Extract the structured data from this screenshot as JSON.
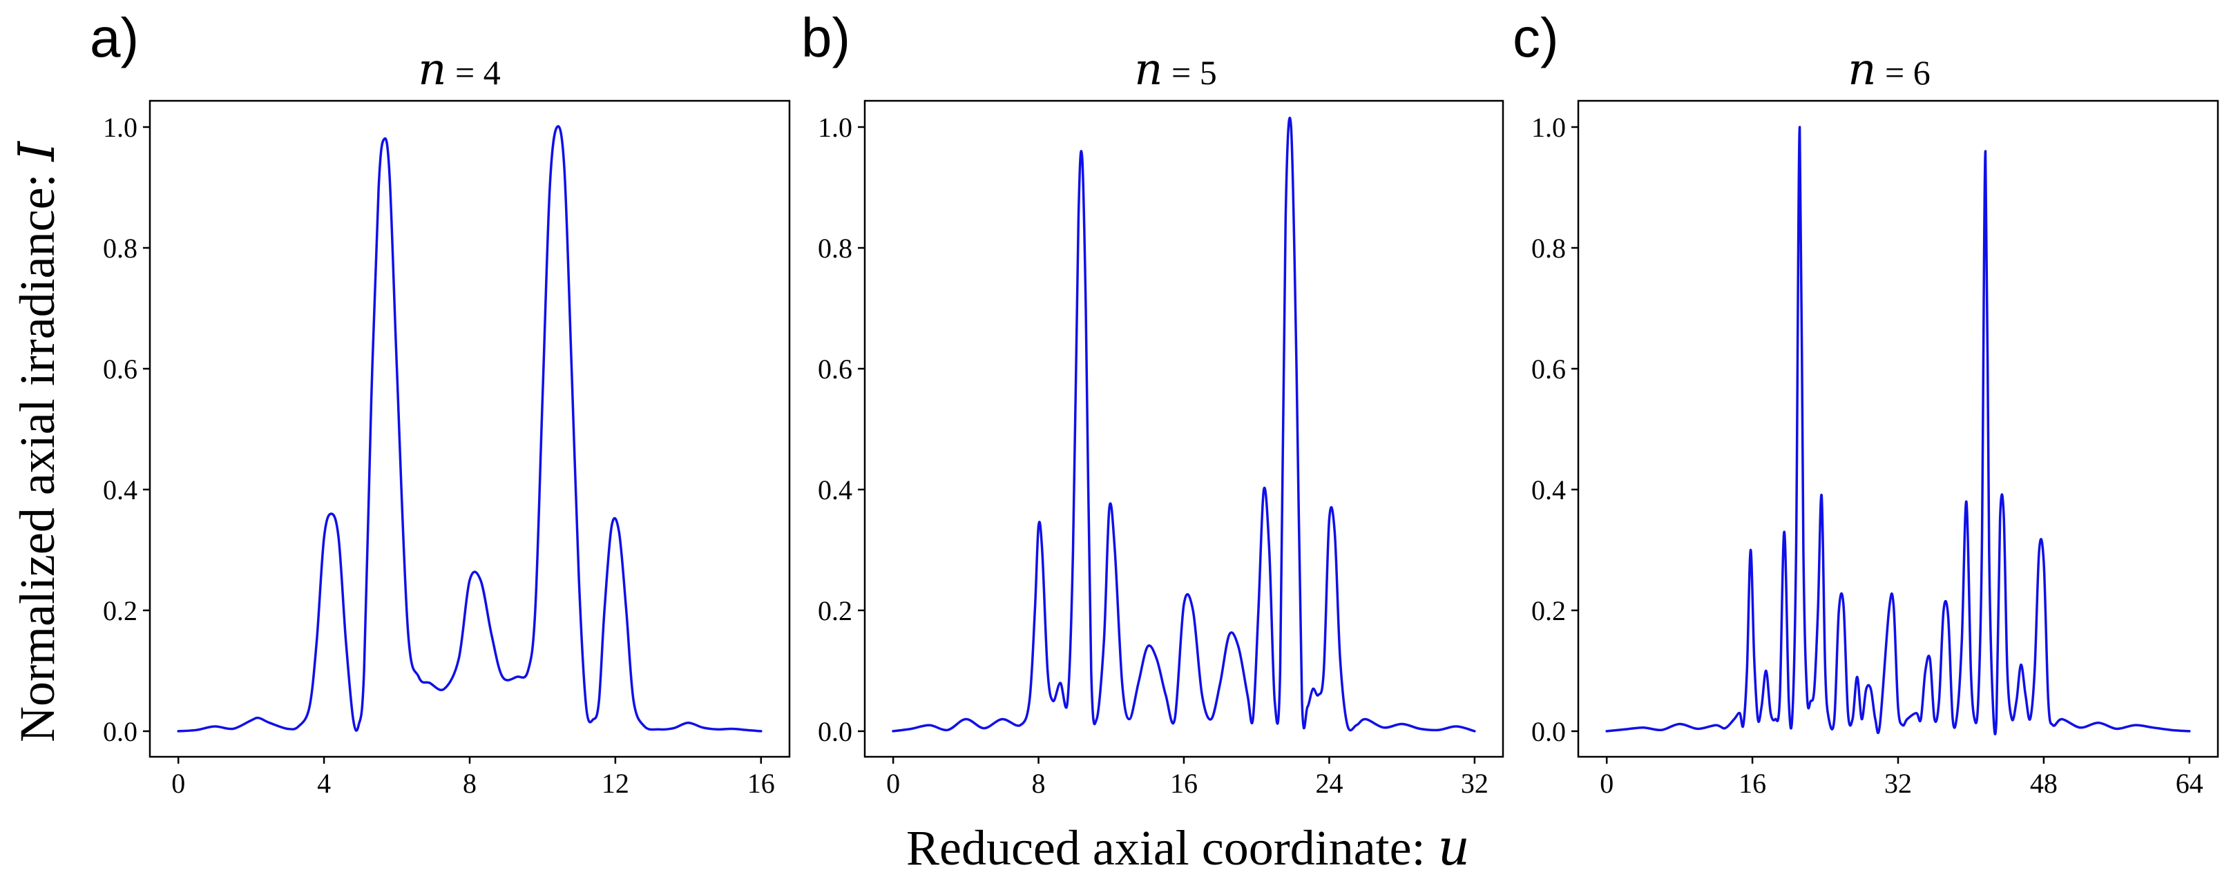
{
  "figure": {
    "ylabel": "Normalized axial irradiance: ",
    "ylabel_var": "I",
    "xlabel": "Reduced axial coordinate: ",
    "xlabel_var": "u",
    "line_color": "#1010e8"
  },
  "chart_data": [
    {
      "type": "line",
      "panel_label": "a)",
      "title_var": "n",
      "title_eq": " = 4",
      "xlim": [
        0,
        16
      ],
      "ylim": [
        0,
        1.0
      ],
      "xticks": [
        0,
        4,
        8,
        12,
        16
      ],
      "xtick_labels": [
        "0",
        "4",
        "8",
        "12",
        "16"
      ],
      "yticks": [
        0.0,
        0.2,
        0.4,
        0.6,
        0.8,
        1.0
      ],
      "ytick_labels": [
        "0.0",
        "0.2",
        "0.4",
        "0.6",
        "0.8",
        "1.0"
      ],
      "series": [
        {
          "name": "I(u)",
          "x": [
            0,
            0.5,
            1.0,
            1.5,
            2.0,
            2.2,
            2.5,
            3.0,
            3.3,
            3.6,
            3.8,
            4.0,
            4.2,
            4.4,
            4.6,
            4.8,
            4.95,
            5.1,
            5.3,
            5.5,
            5.65,
            5.8,
            6.0,
            6.3,
            6.6,
            6.9,
            7.3,
            7.7,
            8.0,
            8.3,
            8.6,
            8.9,
            9.3,
            9.6,
            9.8,
            10.0,
            10.2,
            10.4,
            10.6,
            10.8,
            11.0,
            11.2,
            11.4,
            11.55,
            11.7,
            11.9,
            12.1,
            12.3,
            12.5,
            12.8,
            13.2,
            13.6,
            14.0,
            14.4,
            14.8,
            15.2,
            15.6,
            16.0
          ],
          "y": [
            0.0,
            0.002,
            0.008,
            0.004,
            0.018,
            0.022,
            0.014,
            0.004,
            0.008,
            0.04,
            0.15,
            0.32,
            0.36,
            0.32,
            0.15,
            0.02,
            0.01,
            0.1,
            0.55,
            0.9,
            0.98,
            0.92,
            0.6,
            0.17,
            0.09,
            0.08,
            0.07,
            0.12,
            0.25,
            0.25,
            0.16,
            0.09,
            0.09,
            0.1,
            0.2,
            0.55,
            0.9,
            1.0,
            0.93,
            0.6,
            0.25,
            0.04,
            0.02,
            0.05,
            0.2,
            0.34,
            0.33,
            0.2,
            0.05,
            0.008,
            0.003,
            0.005,
            0.014,
            0.006,
            0.003,
            0.004,
            0.002,
            0.0
          ]
        }
      ]
    },
    {
      "type": "line",
      "panel_label": "b)",
      "title_var": "n",
      "title_eq": " = 5",
      "xlim": [
        0,
        32
      ],
      "ylim": [
        0,
        1.0
      ],
      "xticks": [
        0,
        8,
        16,
        24,
        32
      ],
      "xtick_labels": [
        "0",
        "8",
        "16",
        "24",
        "32"
      ],
      "yticks": [
        0.0,
        0.2,
        0.4,
        0.6,
        0.8,
        1.0
      ],
      "ytick_labels": [
        "0.0",
        "0.2",
        "0.4",
        "0.6",
        "0.8",
        "1.0"
      ],
      "series": [
        {
          "name": "I(u)",
          "x": [
            0,
            1,
            2,
            3,
            4,
            5,
            6,
            7,
            7.5,
            7.8,
            8.0,
            8.2,
            8.5,
            8.8,
            9.2,
            9.6,
            9.9,
            10.2,
            10.4,
            10.6,
            10.9,
            11.2,
            11.6,
            11.9,
            12.2,
            12.6,
            13.0,
            13.5,
            14.0,
            14.5,
            15.0,
            15.5,
            16.0,
            16.5,
            17.0,
            17.5,
            18.0,
            18.5,
            19.0,
            19.5,
            19.8,
            20.1,
            20.4,
            20.7,
            21.0,
            21.3,
            21.6,
            21.9,
            22.2,
            22.5,
            22.8,
            23.1,
            23.4,
            23.7,
            24.0,
            24.3,
            24.6,
            25.0,
            25.5,
            26.0,
            27.0,
            28.0,
            29.0,
            30.0,
            31.0,
            32.0
          ],
          "y": [
            0.0,
            0.004,
            0.01,
            0.002,
            0.02,
            0.005,
            0.02,
            0.01,
            0.05,
            0.2,
            0.34,
            0.3,
            0.1,
            0.05,
            0.08,
            0.05,
            0.3,
            0.85,
            0.95,
            0.7,
            0.1,
            0.02,
            0.15,
            0.37,
            0.3,
            0.08,
            0.02,
            0.08,
            0.14,
            0.12,
            0.06,
            0.02,
            0.21,
            0.2,
            0.06,
            0.02,
            0.08,
            0.16,
            0.14,
            0.06,
            0.02,
            0.2,
            0.4,
            0.3,
            0.05,
            0.1,
            0.85,
            1.0,
            0.6,
            0.05,
            0.04,
            0.07,
            0.06,
            0.1,
            0.35,
            0.33,
            0.12,
            0.01,
            0.01,
            0.02,
            0.006,
            0.012,
            0.004,
            0.002,
            0.008,
            0.0
          ]
        }
      ]
    },
    {
      "type": "line",
      "panel_label": "c)",
      "title_var": "n",
      "title_eq": " = 6",
      "xlim": [
        0,
        64
      ],
      "ylim": [
        0,
        1.0
      ],
      "xticks": [
        0,
        16,
        32,
        48,
        64
      ],
      "xtick_labels": [
        "0",
        "16",
        "32",
        "48",
        "64"
      ],
      "yticks": [
        0.0,
        0.2,
        0.4,
        0.6,
        0.8,
        1.0
      ],
      "ytick_labels": [
        "0.0",
        "0.2",
        "0.4",
        "0.6",
        "0.8",
        "1.0"
      ],
      "series": [
        {
          "name": "I(u)",
          "x": [
            0,
            2,
            4,
            6,
            8,
            10,
            12,
            13,
            14,
            14.6,
            15.0,
            15.4,
            15.8,
            16.2,
            16.6,
            17.0,
            17.5,
            18.0,
            18.5,
            19.0,
            19.5,
            20.0,
            20.4,
            20.8,
            21.2,
            21.6,
            22.0,
            22.4,
            22.8,
            23.2,
            23.6,
            24.0,
            24.4,
            25.0,
            25.5,
            26.0,
            26.5,
            27.0,
            27.5,
            28.0,
            28.5,
            29.0,
            29.5,
            30.0,
            31.0,
            31.5,
            32.0,
            32.5,
            33.0,
            34.0,
            34.5,
            35.0,
            35.5,
            36.0,
            36.5,
            37.0,
            37.5,
            38.0,
            38.5,
            39.0,
            39.5,
            40.0,
            40.4,
            40.8,
            41.2,
            41.6,
            42.0,
            42.4,
            42.8,
            43.2,
            43.6,
            44.0,
            44.5,
            45.0,
            45.5,
            46.0,
            46.5,
            47.0,
            47.5,
            48.0,
            48.5,
            49.0,
            50,
            52,
            54,
            56,
            58,
            60,
            62,
            64
          ],
          "y": [
            0.0,
            0.003,
            0.006,
            0.002,
            0.012,
            0.004,
            0.01,
            0.005,
            0.02,
            0.03,
            0.01,
            0.1,
            0.3,
            0.12,
            0.02,
            0.04,
            0.1,
            0.03,
            0.02,
            0.05,
            0.33,
            0.05,
            0.03,
            0.3,
            1.0,
            0.3,
            0.06,
            0.05,
            0.07,
            0.2,
            0.39,
            0.1,
            0.02,
            0.02,
            0.2,
            0.21,
            0.03,
            0.02,
            0.09,
            0.02,
            0.07,
            0.07,
            0.02,
            0.01,
            0.2,
            0.21,
            0.04,
            0.01,
            0.02,
            0.03,
            0.02,
            0.1,
            0.12,
            0.02,
            0.05,
            0.2,
            0.19,
            0.02,
            0.03,
            0.15,
            0.38,
            0.1,
            0.02,
            0.05,
            0.3,
            0.96,
            0.3,
            0.05,
            0.02,
            0.35,
            0.36,
            0.1,
            0.02,
            0.05,
            0.11,
            0.06,
            0.02,
            0.1,
            0.3,
            0.28,
            0.05,
            0.01,
            0.02,
            0.006,
            0.014,
            0.004,
            0.01,
            0.006,
            0.002,
            0.0
          ]
        }
      ]
    }
  ]
}
